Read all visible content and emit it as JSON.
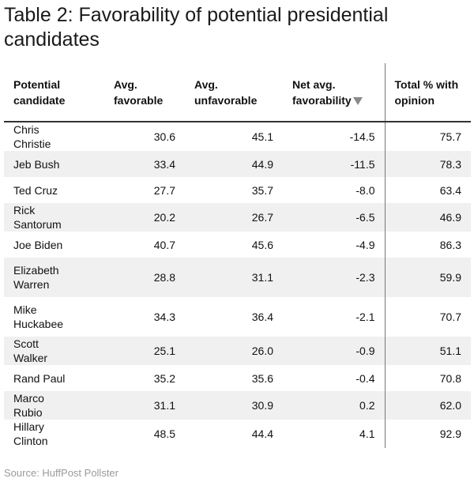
{
  "title": "Table 2: Favorability of potential presidential candidates",
  "source": "Source: HuffPost Pollster",
  "sort_icon": "sort-descending-triangle-icon",
  "colors": {
    "header_rule": "#333333",
    "stripe": "#f0f0f0",
    "sort_icon": "#8a8a8a"
  },
  "chart_data": {
    "type": "table",
    "columns": [
      "Potential candidate",
      "Avg. favorable",
      "Avg. unfavorable",
      "Net avg. favorability",
      "Total % with opinion"
    ],
    "sorted_by": "Net avg. favorability",
    "rows": [
      {
        "candidate": "Chris Christie",
        "favorable": "30.6",
        "unfavorable": "45.1",
        "net": "-14.5",
        "total": "75.7"
      },
      {
        "candidate": "Jeb Bush",
        "favorable": "33.4",
        "unfavorable": "44.9",
        "net": "-11.5",
        "total": "78.3"
      },
      {
        "candidate": "Ted Cruz",
        "favorable": "27.7",
        "unfavorable": "35.7",
        "net": "-8.0",
        "total": "63.4"
      },
      {
        "candidate": "Rick Santorum",
        "favorable": "20.2",
        "unfavorable": "26.7",
        "net": "-6.5",
        "total": "46.9"
      },
      {
        "candidate": "Joe Biden",
        "favorable": "40.7",
        "unfavorable": "45.6",
        "net": "-4.9",
        "total": "86.3"
      },
      {
        "candidate": "Elizabeth Warren",
        "favorable": "28.8",
        "unfavorable": "31.1",
        "net": "-2.3",
        "total": "59.9"
      },
      {
        "candidate": "Mike Huckabee",
        "favorable": "34.3",
        "unfavorable": "36.4",
        "net": "-2.1",
        "total": "70.7"
      },
      {
        "candidate": "Scott Walker",
        "favorable": "25.1",
        "unfavorable": "26.0",
        "net": "-0.9",
        "total": "51.1"
      },
      {
        "candidate": "Rand Paul",
        "favorable": "35.2",
        "unfavorable": "35.6",
        "net": "-0.4",
        "total": "70.8"
      },
      {
        "candidate": "Marco Rubio",
        "favorable": "31.1",
        "unfavorable": "30.9",
        "net": "0.2",
        "total": "62.0"
      },
      {
        "candidate": "Hillary Clinton",
        "favorable": "48.5",
        "unfavorable": "44.4",
        "net": "4.1",
        "total": "92.9"
      }
    ]
  }
}
